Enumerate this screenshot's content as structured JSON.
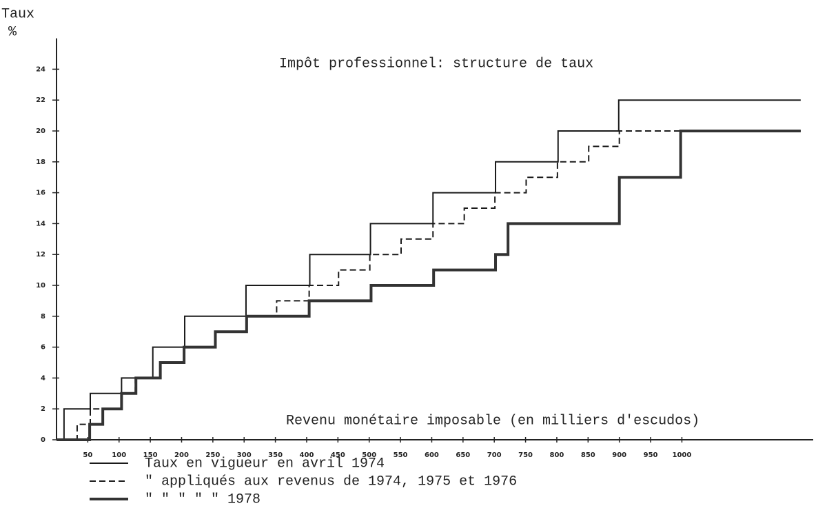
{
  "chart_data": {
    "type": "step",
    "title": "Impôt professionnel: structure de taux",
    "y_label": "Taux",
    "y_unit": "%",
    "x_label": "Revenu monétaire imposable (en milliers d'escudos)",
    "xlim": [
      0,
      1210
    ],
    "xticks": [
      50,
      100,
      150,
      200,
      250,
      300,
      350,
      400,
      450,
      500,
      550,
      600,
      650,
      700,
      750,
      800,
      850,
      900,
      950,
      1000
    ],
    "ylim": [
      0,
      26
    ],
    "yticks": [
      0,
      2,
      4,
      6,
      8,
      10,
      12,
      14,
      16,
      18,
      20,
      22,
      24
    ],
    "series": [
      {
        "name": "Taux en vigueur en avril 1974",
        "color": "#1a1a1a",
        "style": "solid",
        "x": [
          0,
          12,
          54,
          104,
          154,
          205,
          303,
          405,
          502,
          602,
          702,
          802,
          899,
          1190
        ],
        "values": [
          0,
          2,
          3,
          4,
          6,
          8,
          10,
          12,
          14,
          16,
          18,
          20,
          22,
          22
        ]
      },
      {
        "name": "\" appliqués aux revenus de 1974, 1975 et 1976",
        "color": "#1a1a1a",
        "style": "dashed",
        "x": [
          0,
          33,
          54,
          104,
          126,
          166,
          204,
          254,
          304,
          352,
          404,
          451,
          501,
          551,
          602,
          652,
          701,
          751,
          801,
          851,
          900,
          1190
        ],
        "values": [
          0,
          1,
          2,
          3,
          4,
          5,
          6,
          7,
          8,
          9,
          10,
          11,
          12,
          13,
          14,
          15,
          16,
          17,
          18,
          19,
          20,
          20
        ]
      },
      {
        "name": "\" \" \" \" \" 1978",
        "color": "#333333",
        "style": "thick",
        "x": [
          0,
          53,
          74,
          104,
          127,
          166,
          204,
          254,
          304,
          404,
          503,
          603,
          702,
          722,
          900,
          998,
          1190
        ],
        "values": [
          0,
          1,
          2,
          3,
          4,
          5,
          6,
          7,
          8,
          9,
          10,
          11,
          12,
          14,
          17,
          20,
          20
        ]
      }
    ]
  }
}
